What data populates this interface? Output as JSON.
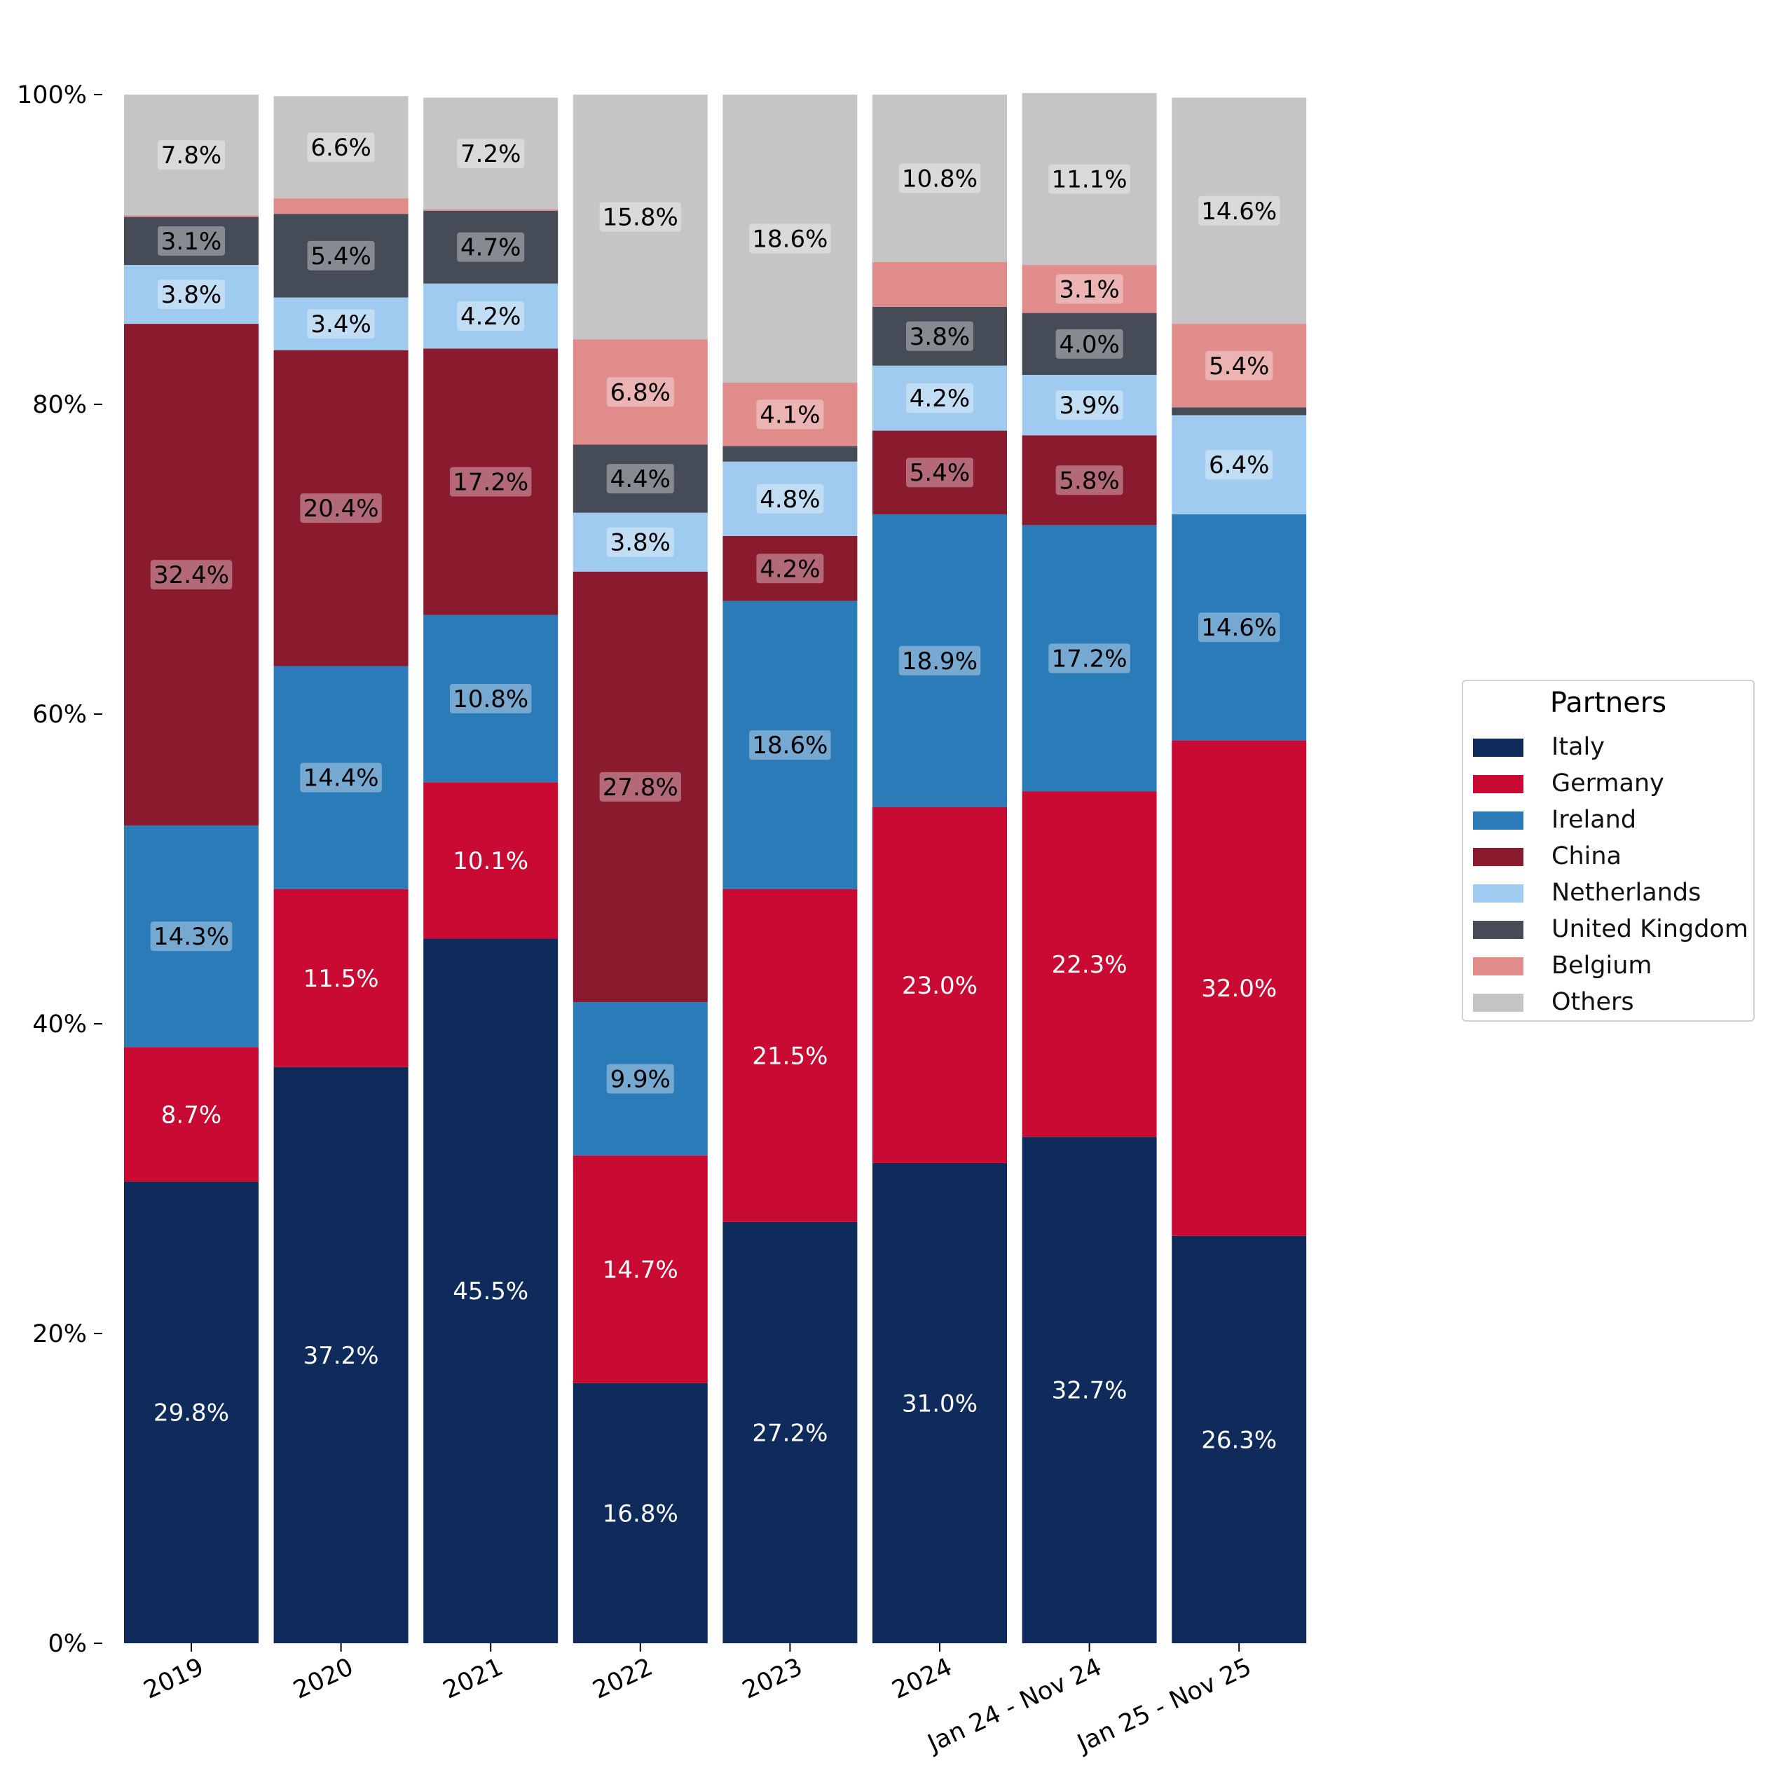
{
  "chart_data": {
    "type": "bar",
    "stacked": true,
    "normalized_percent": true,
    "categories": [
      "2019",
      "2020",
      "2021",
      "2022",
      "2023",
      "2024",
      "Jan 24 - Nov 24",
      "Jan 25 - Nov 25"
    ],
    "yticks": [
      "0%",
      "20%",
      "40%",
      "60%",
      "80%",
      "100%"
    ],
    "ylim": [
      0,
      100
    ],
    "legend_title": "Partners",
    "legend_position": "right",
    "grid": false,
    "series": [
      {
        "name": "Italy",
        "color": "#0f2b5c",
        "label_color": "#ffffff",
        "values": [
          29.8,
          37.2,
          45.5,
          16.8,
          27.2,
          31.0,
          32.7,
          26.3
        ],
        "labels": [
          "29.8%",
          "37.2%",
          "45.5%",
          "16.8%",
          "27.2%",
          "31.0%",
          "32.7%",
          "26.3%"
        ]
      },
      {
        "name": "Germany",
        "color": "#c90b34",
        "label_color": "#ffffff",
        "values": [
          8.7,
          11.5,
          10.1,
          14.7,
          21.5,
          23.0,
          22.3,
          32.0
        ],
        "labels": [
          "8.7%",
          "11.5%",
          "10.1%",
          "14.7%",
          "21.5%",
          "23.0%",
          "22.3%",
          "32.0%"
        ]
      },
      {
        "name": "Ireland",
        "color": "#2b7bb9",
        "label_color": "#000000",
        "values": [
          14.3,
          14.4,
          10.8,
          9.9,
          18.6,
          18.9,
          17.2,
          14.6
        ],
        "labels": [
          "14.3%",
          "14.4%",
          "10.8%",
          "9.9%",
          "18.6%",
          "18.9%",
          "17.2%",
          "14.6%"
        ]
      },
      {
        "name": "China",
        "color": "#8a1a2e",
        "label_color": "#000000",
        "values": [
          32.4,
          20.4,
          17.2,
          27.8,
          4.2,
          5.4,
          5.8,
          0.0
        ],
        "labels": [
          "32.4%",
          "20.4%",
          "17.2%",
          "27.8%",
          "4.2%",
          "5.4%",
          "5.8%",
          ""
        ]
      },
      {
        "name": "Netherlands",
        "color": "#9ecbef",
        "label_color": "#000000",
        "values": [
          3.8,
          3.4,
          4.2,
          3.8,
          4.8,
          4.2,
          3.9,
          6.4
        ],
        "labels": [
          "3.8%",
          "3.4%",
          "4.2%",
          "3.8%",
          "4.8%",
          "4.2%",
          "3.9%",
          "6.4%"
        ]
      },
      {
        "name": "United Kingdom",
        "color": "#464c57",
        "label_color": "#000000",
        "values": [
          3.1,
          5.4,
          4.7,
          4.4,
          1.0,
          3.8,
          4.0,
          0.5
        ],
        "labels": [
          "3.1%",
          "5.4%",
          "4.7%",
          "4.4%",
          "",
          "3.8%",
          "4.0%",
          ""
        ]
      },
      {
        "name": "Belgium",
        "color": "#e08c8a",
        "label_color": "#000000",
        "values": [
          0.1,
          1.0,
          0.1,
          6.8,
          4.1,
          2.9,
          3.1,
          5.4
        ],
        "labels": [
          "",
          "",
          "",
          "6.8%",
          "4.1%",
          "",
          "3.1%",
          "5.4%"
        ]
      },
      {
        "name": "Others",
        "color": "#c5c5c5",
        "label_color": "#000000",
        "values": [
          7.8,
          6.6,
          7.2,
          15.8,
          18.6,
          10.8,
          11.1,
          14.6
        ],
        "labels": [
          "7.8%",
          "6.6%",
          "7.2%",
          "15.8%",
          "18.6%",
          "10.8%",
          "11.1%",
          "14.6%"
        ]
      }
    ]
  }
}
